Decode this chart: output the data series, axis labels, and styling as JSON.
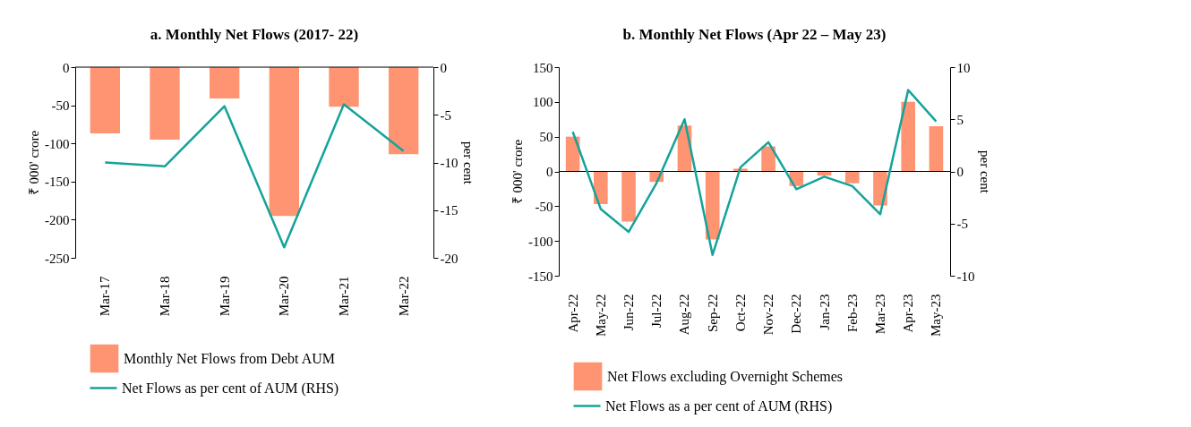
{
  "chart_data": [
    {
      "type": "bar",
      "title": "a. Monthly Net Flows (2017- 22)",
      "ylabel": "₹ 000' crore",
      "y2label": "per cent",
      "legend": "bottom",
      "categories": [
        "Mar-17",
        "Mar-18",
        "Mar-19",
        "Mar-20",
        "Mar-21",
        "Mar-22"
      ],
      "ylim": [
        -250,
        0
      ],
      "yticks": [
        -250,
        -200,
        -150,
        -100,
        -50,
        0
      ],
      "y2lim": [
        -20,
        0
      ],
      "y2ticks": [
        -20,
        -15,
        -10,
        -5,
        0
      ],
      "series": [
        {
          "name": "Monthly Net Flows from Debt AUM",
          "color": "#ff9473",
          "values": [
            -87,
            -95,
            -41,
            -195,
            -52,
            -114
          ]
        },
        {
          "name": "Net Flows as per cent of AUM (RHS)",
          "type": "line",
          "axis": "y2",
          "color": "#14a39a",
          "values": [
            -10.0,
            -10.4,
            -4.1,
            -18.9,
            -3.9,
            -8.8
          ]
        }
      ]
    },
    {
      "type": "bar",
      "title": "b. Monthly Net Flows (Apr 22 – May 23)",
      "ylabel": "₹ 000' crore",
      "y2label": "per cent",
      "legend": "bottom",
      "categories": [
        "Apr-22",
        "May-22",
        "Jun-22",
        "Jul-22",
        "Aug-22",
        "Sep-22",
        "Oct-22",
        "Nov-22",
        "Dec-22",
        "Jan-23",
        "Feb-23",
        "Mar-23",
        "Apr-23",
        "May-23"
      ],
      "ylim": [
        -150,
        150
      ],
      "yticks": [
        -150,
        -100,
        -50,
        0,
        50,
        100,
        150
      ],
      "y2lim": [
        -10,
        10
      ],
      "y2ticks": [
        -10,
        -5,
        0,
        5,
        10
      ],
      "series": [
        {
          "name": "Net Flows excluding Overnight Schemes",
          "color": "#ff9473",
          "values": [
            50,
            -47,
            -72,
            -15,
            66,
            -98,
            4,
            36,
            -21,
            -6,
            -17,
            -49,
            100,
            65
          ]
        },
        {
          "name": "Net Flows as a per cent of AUM (RHS)",
          "type": "line",
          "axis": "y2",
          "color": "#14a39a",
          "values": [
            3.8,
            -3.6,
            -5.8,
            -1.1,
            5.0,
            -8.0,
            0.4,
            2.8,
            -1.7,
            -0.5,
            -1.4,
            -4.1,
            7.8,
            4.8
          ]
        }
      ]
    }
  ]
}
